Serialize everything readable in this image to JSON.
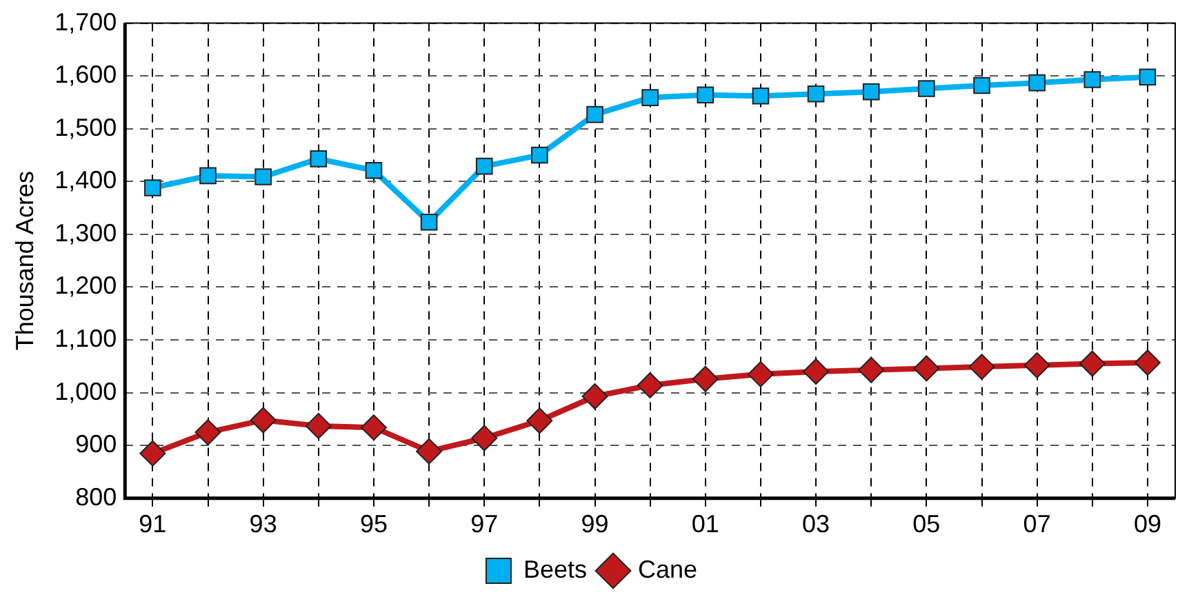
{
  "chart_data": {
    "type": "line",
    "ylabel": "Thousand Acres",
    "categories": [
      "91",
      null,
      "93",
      null,
      "95",
      null,
      "97",
      null,
      "99",
      null,
      "01",
      null,
      "03",
      null,
      "05",
      null,
      "07",
      null,
      "09"
    ],
    "series": [
      {
        "name": "Beets",
        "color": "#00b0f0",
        "marker": "square",
        "values": [
          1388,
          1411,
          1409,
          1443,
          1421,
          1323,
          1429,
          1450,
          1527,
          1559,
          1564,
          1562,
          1566,
          1570,
          1576,
          1582,
          1587,
          1593,
          1598
        ]
      },
      {
        "name": "Cane",
        "color": "#c0191c",
        "marker": "diamond",
        "values": [
          885,
          925,
          948,
          937,
          934,
          889,
          914,
          947,
          993,
          1014,
          1026,
          1035,
          1040,
          1043,
          1046,
          1049,
          1052,
          1055,
          1057
        ]
      }
    ],
    "ylim": [
      800,
      1700
    ],
    "yticks": [
      800,
      900,
      {
        "value": 1000,
        "label": "1,000"
      },
      {
        "value": 1100,
        "label": "1,100"
      },
      {
        "value": 1200,
        "label": "1,200"
      },
      {
        "value": 1300,
        "label": "1,300"
      },
      {
        "value": 1400,
        "label": "1,400"
      },
      {
        "value": 1500,
        "label": "1,500"
      },
      {
        "value": 1600,
        "label": "1,600"
      },
      {
        "value": 1700,
        "label": "1,700"
      }
    ],
    "grid": true,
    "legend": "bottom",
    "line_style": "solid"
  }
}
